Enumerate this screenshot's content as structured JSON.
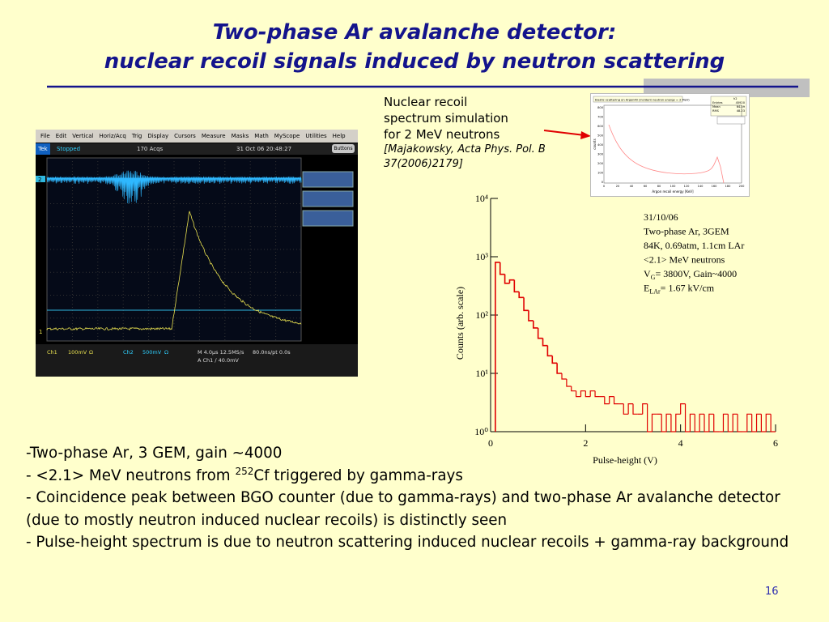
{
  "title": [
    "Two-phase Ar avalanche detector:",
    "nuclear recoil signals induced by neutron scattering"
  ],
  "caption": [
    "Nuclear recoil",
    "spectrum simulation",
    "for 2 MeV neutrons"
  ],
  "citation": [
    "[Majakowsky, Acta Phys. Pol. B",
    "37(2006)2179]"
  ],
  "scope": {
    "menu": [
      "File",
      "Edit",
      "Vertical",
      "Horiz/Acq",
      "Trig",
      "Display",
      "Cursors",
      "Measure",
      "Masks",
      "Math",
      "MyScope",
      "Utilities",
      "Help"
    ],
    "brand": "Tek",
    "state": "Stopped",
    "acqs": "170 Acqs",
    "date": "31 Oct 06 20:48:27",
    "button": "Buttons",
    "ch2_marker": "2",
    "ch1_marker": "1",
    "status": [
      "Ch1",
      "100mV",
      "Ω",
      "Ch2",
      "500mV",
      "Ω"
    ],
    "timebase": "M 4.0µs 12.5MS/s",
    "sampling": "80.0ns/pt  0.0s",
    "trigger": "A  Ch1  ∕  40.0mV"
  },
  "simulation": {
    "title": "Elastic scattering on Argon40 (incident neutron energy = 2 MeV)",
    "stats_name": "h2",
    "stats": [
      [
        "Entries",
        "45920"
      ],
      [
        "Mean",
        "64.09"
      ],
      [
        "RMS",
        "48.23"
      ]
    ],
    "xlabel": "Argon recoil energy [KeV]",
    "ylabel": "counts",
    "xticks": [
      "0",
      "20",
      "40",
      "60",
      "80",
      "100",
      "120",
      "140",
      "160",
      "180",
      "200"
    ],
    "yticks": [
      "0",
      "100",
      "200",
      "300",
      "400",
      "500",
      "600",
      "700",
      "800"
    ]
  },
  "chart_data": {
    "type": "histogram",
    "xlabel": "Pulse-height (V)",
    "ylabel": "Counts (arb. scale)",
    "xlim": [
      0,
      6
    ],
    "xticks": [
      0,
      2,
      4,
      6
    ],
    "ylim": [
      1,
      10000
    ],
    "log_y": true,
    "yticks": [
      {
        "value": 1,
        "label": "10⁰"
      },
      {
        "value": 10,
        "label": "10¹"
      },
      {
        "value": 100,
        "label": "10²"
      },
      {
        "value": 1000,
        "label": "10³"
      },
      {
        "value": 10000,
        "label": "10⁴"
      }
    ],
    "color": "#e00000",
    "bins": [
      0.1,
      0.2,
      0.3,
      0.4,
      0.5,
      0.6,
      0.7,
      0.8,
      0.9,
      1.0,
      1.1,
      1.2,
      1.3,
      1.4,
      1.5,
      1.6,
      1.7,
      1.8,
      1.9,
      2.0,
      2.1,
      2.2,
      2.3,
      2.4,
      2.5,
      2.6,
      2.7,
      2.8,
      2.9,
      3.0,
      3.1,
      3.2,
      3.3,
      3.4,
      3.5,
      3.6,
      3.7,
      3.8,
      3.9,
      4.0,
      4.1,
      4.2,
      4.3,
      4.4,
      4.5,
      4.6,
      4.7,
      4.8,
      4.9,
      5.0,
      5.1,
      5.2,
      5.3,
      5.4,
      5.5,
      5.6,
      5.7,
      5.8,
      5.9,
      6.0
    ],
    "counts": [
      800,
      500,
      350,
      400,
      250,
      200,
      120,
      80,
      60,
      40,
      30,
      20,
      15,
      10,
      8,
      6,
      5,
      4,
      5,
      4,
      5,
      4,
      4,
      3,
      4,
      3,
      3,
      2,
      3,
      2,
      2,
      3,
      1,
      2,
      2,
      1,
      2,
      1,
      2,
      3,
      1,
      2,
      1,
      2,
      1,
      2,
      1,
      1,
      2,
      1,
      2,
      1,
      1,
      2,
      1,
      2,
      1,
      2,
      1
    ],
    "annotations": [
      [
        {
          "text": "31/10/06"
        }
      ],
      [
        {
          "text": "Two-phase Ar, 3GEM"
        }
      ],
      [
        {
          "text": "84K, 0.69atm, 1.1cm LAr"
        }
      ],
      [
        {
          "text": "<2.1> MeV neutrons"
        }
      ],
      [
        {
          "text": "V"
        },
        {
          "text": "G",
          "sub": true
        },
        {
          "text": "= 3800V, Gain~4000"
        }
      ],
      [
        {
          "text": "E"
        },
        {
          "text": "LAr",
          "sub": true
        },
        {
          "text": "= 1.67 kV/cm"
        }
      ]
    ]
  },
  "bullets": [
    [
      {
        "text": "-Two-phase Ar, 3 GEM, gain ~4000"
      }
    ],
    [
      {
        "text": "- <2.1> MeV neutrons from "
      },
      {
        "text": "252",
        "sup": true
      },
      {
        "text": "Cf triggered by gamma-rays"
      }
    ],
    [
      {
        "text": "- Coincidence peak between BGO counter (due to gamma-rays) and two-phase Ar avalanche detector (due to mostly neutron induced nuclear recoils) is distinctly seen"
      }
    ],
    [
      {
        "text": "- Pulse-height spectrum is due to neutron scattering induced nuclear recoils + gamma-ray background"
      }
    ]
  ],
  "page_number": "16"
}
